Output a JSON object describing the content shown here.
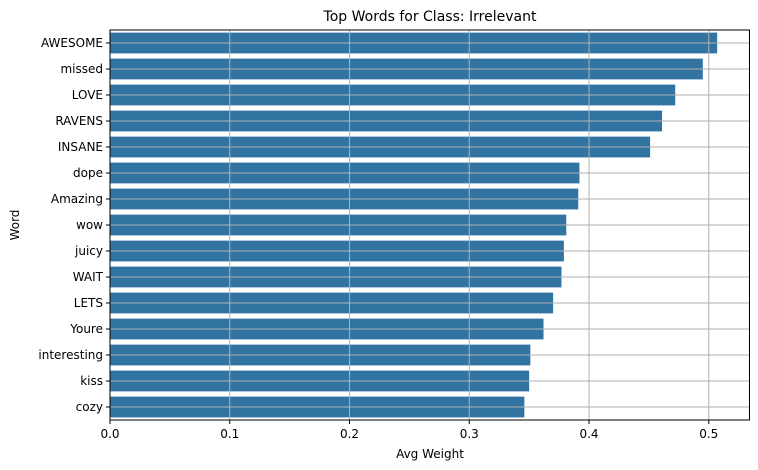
{
  "chart_data": {
    "type": "bar",
    "orientation": "horizontal",
    "title": "Top Words for Class: Irrelevant",
    "xlabel": "Avg Weight",
    "ylabel": "Word",
    "categories": [
      "AWESOME",
      "missed",
      "LOVE",
      "RAVENS",
      "INSANE",
      "dope",
      "Amazing",
      "wow",
      "juicy",
      "WAIT",
      "LETS",
      "Youre",
      "interesting",
      "kiss",
      "cozy"
    ],
    "values": [
      0.507,
      0.495,
      0.472,
      0.461,
      0.451,
      0.392,
      0.391,
      0.381,
      0.379,
      0.377,
      0.37,
      0.362,
      0.351,
      0.35,
      0.346
    ],
    "xlim": [
      0,
      0.534
    ],
    "xticks": [
      "0.0",
      "0.1",
      "0.2",
      "0.3",
      "0.4",
      "0.5"
    ],
    "grid": true,
    "bar_color": "#3274a1",
    "grid_color": "#b0b0b0"
  }
}
